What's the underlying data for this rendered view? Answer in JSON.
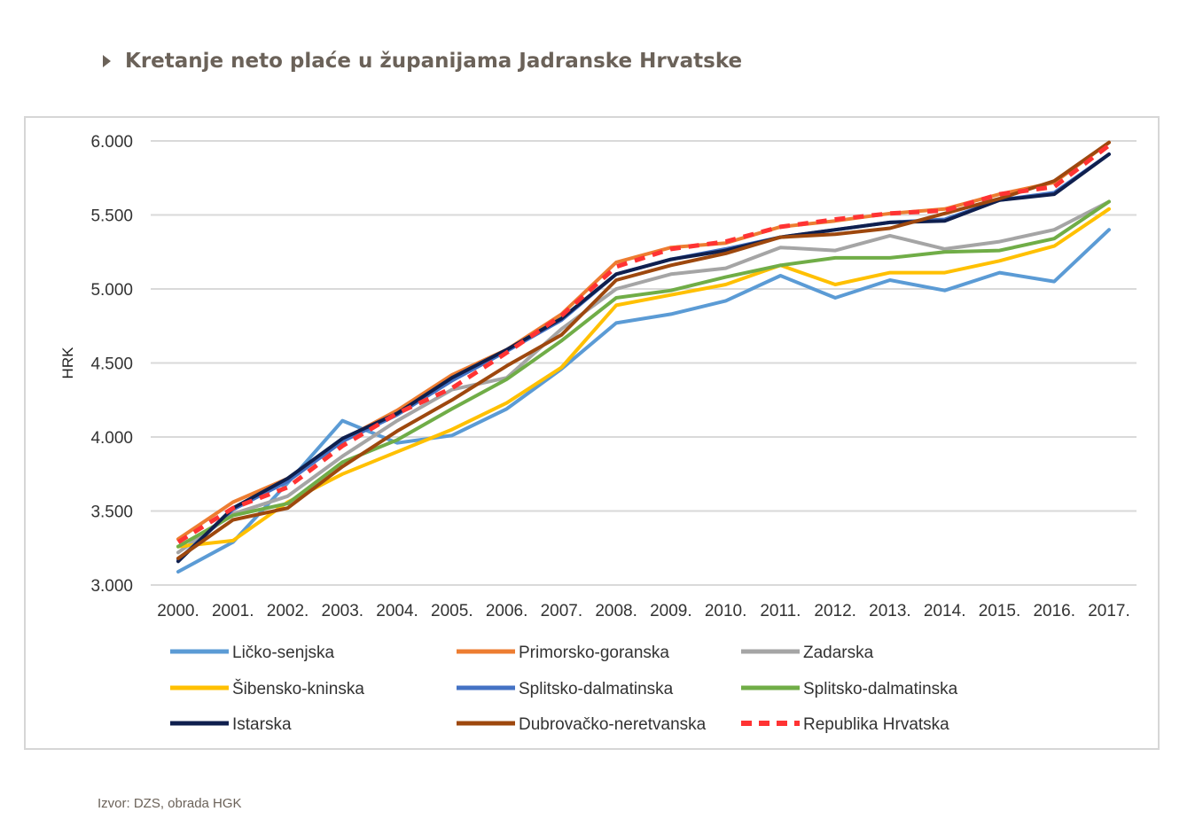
{
  "page": {
    "title": "Kretanje neto plaće u županijama Jadranske Hrvatske",
    "source": "Izvor: DZS, obrada HGK"
  },
  "chart_data": {
    "type": "line",
    "ylabel": "HRK",
    "ylim": [
      3000,
      6000
    ],
    "yticks": [
      3000,
      3500,
      4000,
      4500,
      5000,
      5500,
      6000
    ],
    "ytick_labels": [
      "3.000",
      "3.500",
      "4.000",
      "4.500",
      "5.000",
      "5.500",
      "6.000"
    ],
    "grid": "horizontal",
    "legend_position": "bottom",
    "categories": [
      "2000.",
      "2001.",
      "2002.",
      "2003.",
      "2004.",
      "2005.",
      "2006.",
      "2007.",
      "2008.",
      "2009.",
      "2010.",
      "2011.",
      "2012.",
      "2013.",
      "2014.",
      "2015.",
      "2016.",
      "2017."
    ],
    "series": [
      {
        "name": "Ličko-senjska",
        "color": "#5b9bd5",
        "dashed": false,
        "values": [
          3090,
          3290,
          3690,
          4110,
          3960,
          4010,
          4190,
          4460,
          4770,
          4830,
          4920,
          5090,
          4940,
          5060,
          4990,
          5110,
          5050,
          5400
        ]
      },
      {
        "name": "Primorsko-goranska",
        "color": "#ed7d31",
        "dashed": false,
        "values": [
          3310,
          3560,
          3720,
          3980,
          4180,
          4420,
          4590,
          4830,
          5180,
          5280,
          5310,
          5420,
          5460,
          5510,
          5540,
          5640,
          5720,
          5990
        ]
      },
      {
        "name": "Zadarska",
        "color": "#a5a5a5",
        "dashed": false,
        "values": [
          3220,
          3480,
          3600,
          3870,
          4110,
          4320,
          4400,
          4730,
          5000,
          5100,
          5140,
          5280,
          5260,
          5360,
          5270,
          5320,
          5400,
          5590
        ]
      },
      {
        "name": "Šibensko-kninska",
        "color": "#ffc000",
        "dashed": false,
        "values": [
          3260,
          3300,
          3560,
          3750,
          3900,
          4050,
          4230,
          4470,
          4890,
          4960,
          5030,
          5160,
          5030,
          5110,
          5110,
          5190,
          5290,
          5540
        ]
      },
      {
        "name": "Splitsko-dalmatinska",
        "color": "#4472c4",
        "dashed": false,
        "values": [
          3170,
          3510,
          3700,
          3970,
          4150,
          4380,
          4580,
          4790,
          5100,
          5200,
          5270,
          5350,
          5400,
          5450,
          5470,
          5600,
          5650,
          5910
        ]
      },
      {
        "name": "Splitsko-dalmatinska",
        "color": "#70ad47",
        "dashed": false,
        "values": [
          3260,
          3470,
          3550,
          3830,
          3980,
          4190,
          4390,
          4650,
          4940,
          4990,
          5080,
          5160,
          5210,
          5210,
          5250,
          5260,
          5340,
          5590
        ]
      },
      {
        "name": "Istarska",
        "color": "#0f1f4e",
        "dashed": false,
        "values": [
          3160,
          3520,
          3720,
          3990,
          4160,
          4400,
          4590,
          4800,
          5100,
          5200,
          5260,
          5350,
          5400,
          5450,
          5460,
          5600,
          5640,
          5910
        ]
      },
      {
        "name": "Dubrovačko-neretvanska",
        "color": "#9e480e",
        "dashed": false,
        "values": [
          3180,
          3440,
          3520,
          3800,
          4040,
          4250,
          4480,
          4690,
          5060,
          5160,
          5240,
          5350,
          5370,
          5410,
          5510,
          5610,
          5730,
          5990
        ]
      },
      {
        "name": "Republika Hrvatska",
        "color": "#ff3333",
        "dashed": true,
        "values": [
          3290,
          3520,
          3660,
          3940,
          4160,
          4330,
          4570,
          4820,
          5150,
          5270,
          5320,
          5420,
          5470,
          5510,
          5530,
          5640,
          5690,
          5970
        ]
      }
    ]
  }
}
